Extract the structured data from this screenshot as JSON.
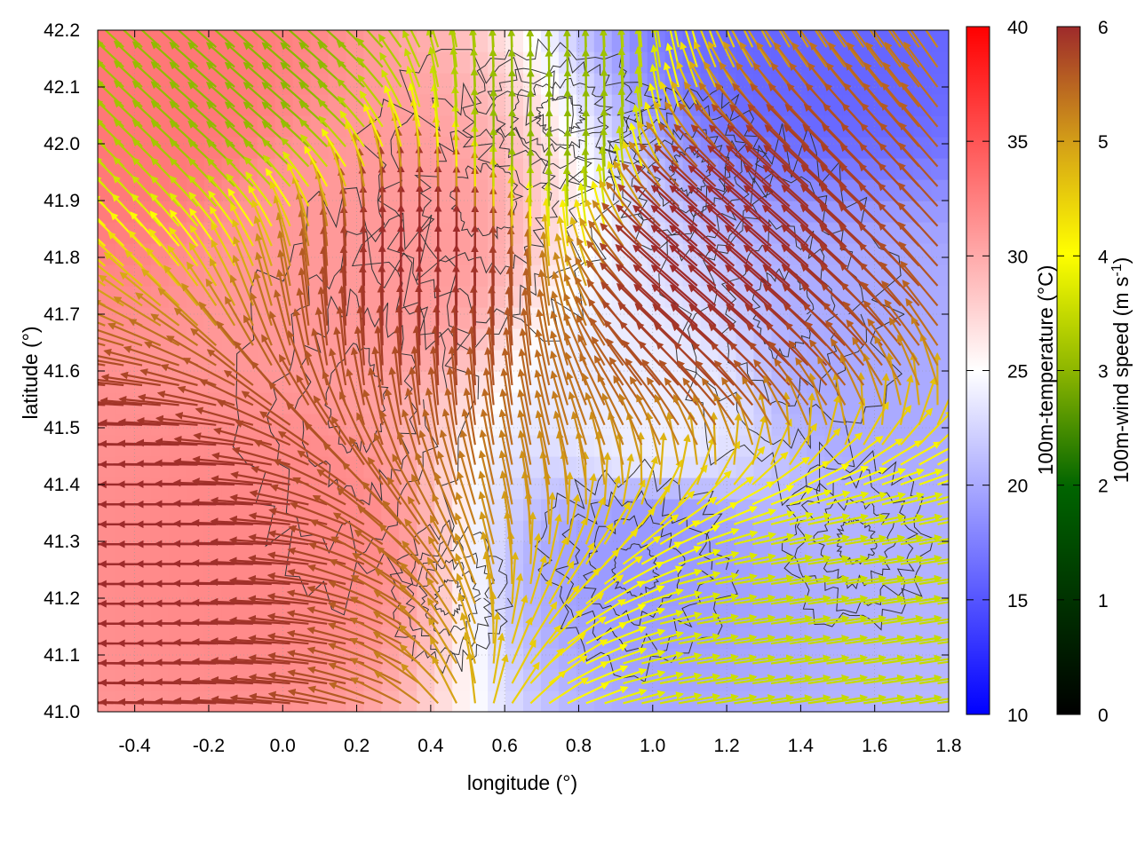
{
  "chart_data": {
    "type": "heatmap",
    "title": "",
    "xlabel": "longitude (°)",
    "ylabel": "latitude (°)",
    "xlim": [
      -0.5,
      1.8
    ],
    "ylim": [
      41.0,
      42.2
    ],
    "xticks": [
      -0.4,
      -0.2,
      0.0,
      0.2,
      0.4,
      0.6,
      0.8,
      1.0,
      1.2,
      1.4,
      1.6,
      1.8
    ],
    "yticks": [
      41.0,
      41.1,
      41.2,
      41.3,
      41.4,
      41.5,
      41.6,
      41.7,
      41.8,
      41.9,
      42.0,
      42.1,
      42.2
    ],
    "xtick_labels": [
      "-0.4",
      "-0.2",
      "0.0",
      "0.2",
      "0.4",
      "0.6",
      "0.8",
      "1.0",
      "1.2",
      "1.4",
      "1.6",
      "1.8"
    ],
    "ytick_labels": [
      "41.0",
      "41.1",
      "41.2",
      "41.3",
      "41.4",
      "41.5",
      "41.6",
      "41.7",
      "41.8",
      "41.9",
      "42.0",
      "42.1",
      "42.2"
    ],
    "grid": true,
    "temperature_colorbar": {
      "label": "100m-temperature (°C)",
      "range": [
        10,
        40
      ],
      "ticks": [
        10,
        15,
        20,
        25,
        30,
        35,
        40
      ],
      "tick_labels": [
        "10",
        "15",
        "20",
        "25",
        "30",
        "35",
        "40"
      ],
      "colors": [
        "#0000ff",
        "#ffffff",
        "#ff0000"
      ]
    },
    "wind_colorbar": {
      "label": "100m-wind speed (m s",
      "label_sup": "-1",
      "label_end": ")",
      "range": [
        0,
        6
      ],
      "ticks": [
        0,
        1,
        2,
        3,
        4,
        5,
        6
      ],
      "tick_labels": [
        "0",
        "1",
        "2",
        "3",
        "4",
        "5",
        "6"
      ],
      "colors": [
        "#000000",
        "#006400",
        "#8db600",
        "#ffff00",
        "#d4a017",
        "#9e2a2b"
      ]
    },
    "temperature_field": {
      "description_points": [
        {
          "lon": -0.4,
          "lat": 42.1,
          "t": 33
        },
        {
          "lon": 0.0,
          "lat": 41.3,
          "t": 32
        },
        {
          "lon": 0.2,
          "lat": 41.8,
          "t": 31
        },
        {
          "lon": 1.0,
          "lat": 41.5,
          "t": 24
        },
        {
          "lon": 1.0,
          "lat": 41.3,
          "t": 19
        },
        {
          "lon": 1.5,
          "lat": 42.2,
          "t": 16
        },
        {
          "lon": 1.6,
          "lat": 41.6,
          "t": 20
        }
      ]
    },
    "wind_regions": [
      {
        "lon": -0.4,
        "lat": 41.3,
        "speed": 6,
        "dir": "west"
      },
      {
        "lon": 0.4,
        "lat": 41.8,
        "speed": 6,
        "dir": "north"
      },
      {
        "lon": 1.2,
        "lat": 41.8,
        "speed": 6,
        "dir": "northwest"
      },
      {
        "lon": 0.0,
        "lat": 42.1,
        "speed": 3,
        "dir": "northwest"
      },
      {
        "lon": 0.7,
        "lat": 42.0,
        "speed": 3,
        "dir": "north"
      },
      {
        "lon": 1.5,
        "lat": 41.1,
        "speed": 3.5,
        "dir": "east"
      }
    ]
  }
}
